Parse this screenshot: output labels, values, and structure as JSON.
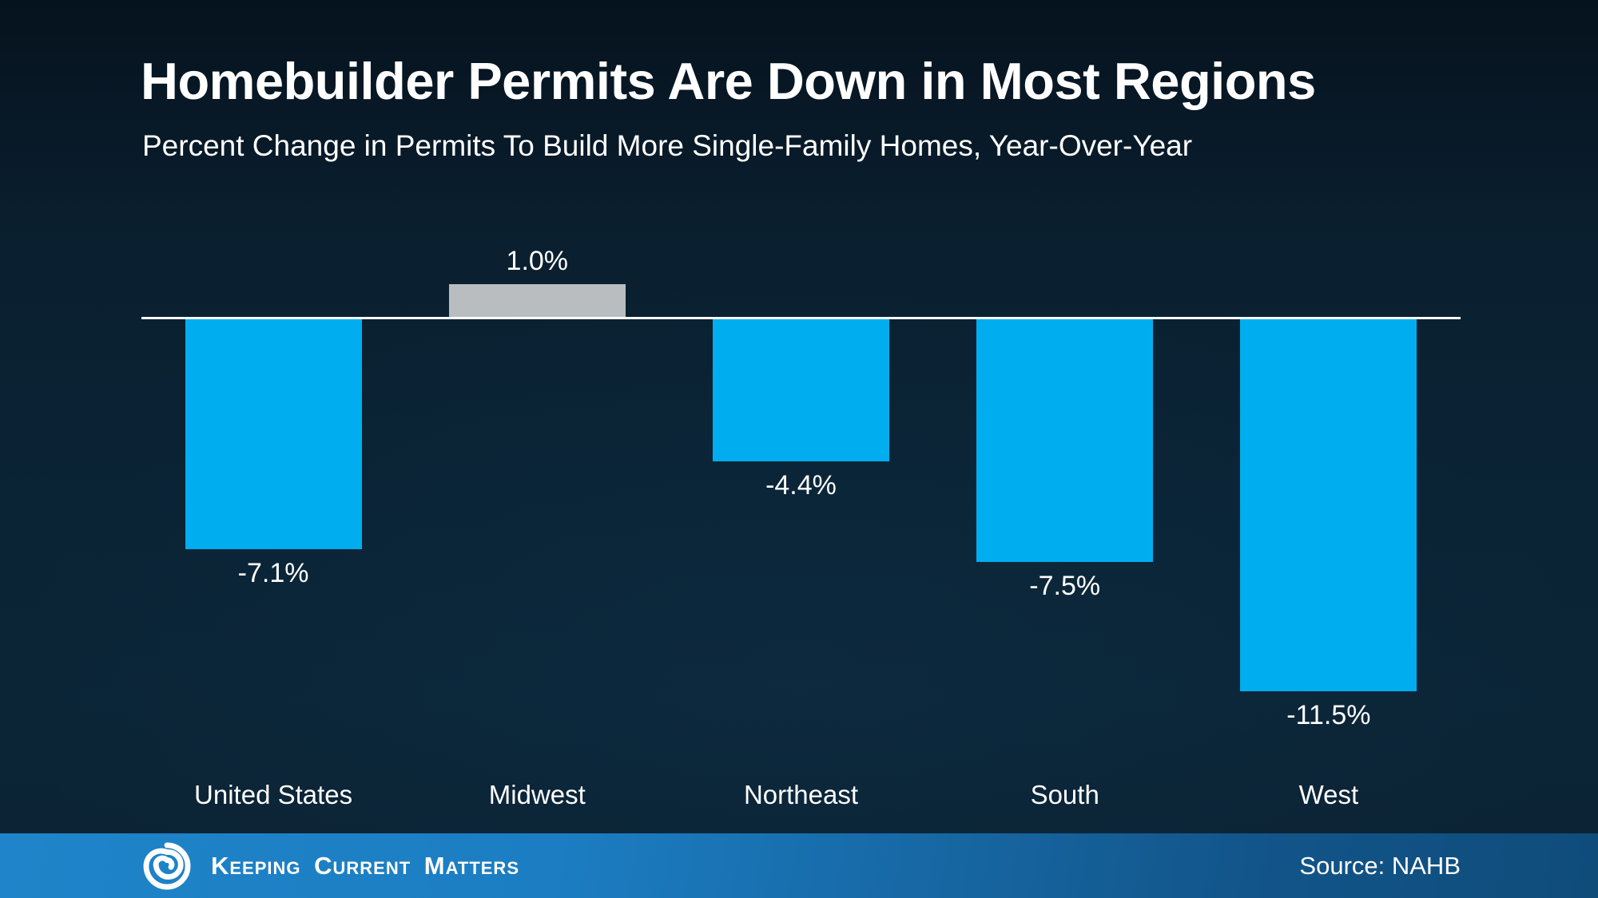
{
  "header": {
    "title": "Homebuilder Permits Are Down in Most Regions",
    "subtitle": "Percent Change in Permits To Build More Single-Family Homes, Year-Over-Year"
  },
  "chart_data": {
    "type": "bar",
    "categories": [
      "United States",
      "Midwest",
      "Northeast",
      "South",
      "West"
    ],
    "values": [
      -7.1,
      1.0,
      -4.4,
      -7.5,
      -11.5
    ],
    "value_labels": [
      "-7.1%",
      "1.0%",
      "-4.4%",
      "-7.5%",
      "-11.5%"
    ],
    "title": "Homebuilder Permits Are Down in Most Regions",
    "subtitle": "Percent Change in Permits To Build More Single-Family Homes, Year-Over-Year",
    "xlabel": "",
    "ylabel": "",
    "ylim": [
      -12,
      2
    ],
    "grid": false,
    "legend": false,
    "baseline_value": 0,
    "colors": {
      "negative_bar": "#00aeef",
      "positive_bar": "#b9bdbf",
      "axis_line": "#ffffff",
      "label_text": "#ffffff"
    }
  },
  "footer": {
    "brand": "Keeping Current Matters",
    "logo_icon": "kcm-swirl-logo",
    "source": "Source: NAHB",
    "gradient": [
      "#1f84c9",
      "#0f4c7a"
    ]
  },
  "page": {
    "background_top": "#06131e",
    "background_bottom": "#0b2233",
    "text_color": "#ffffff"
  }
}
